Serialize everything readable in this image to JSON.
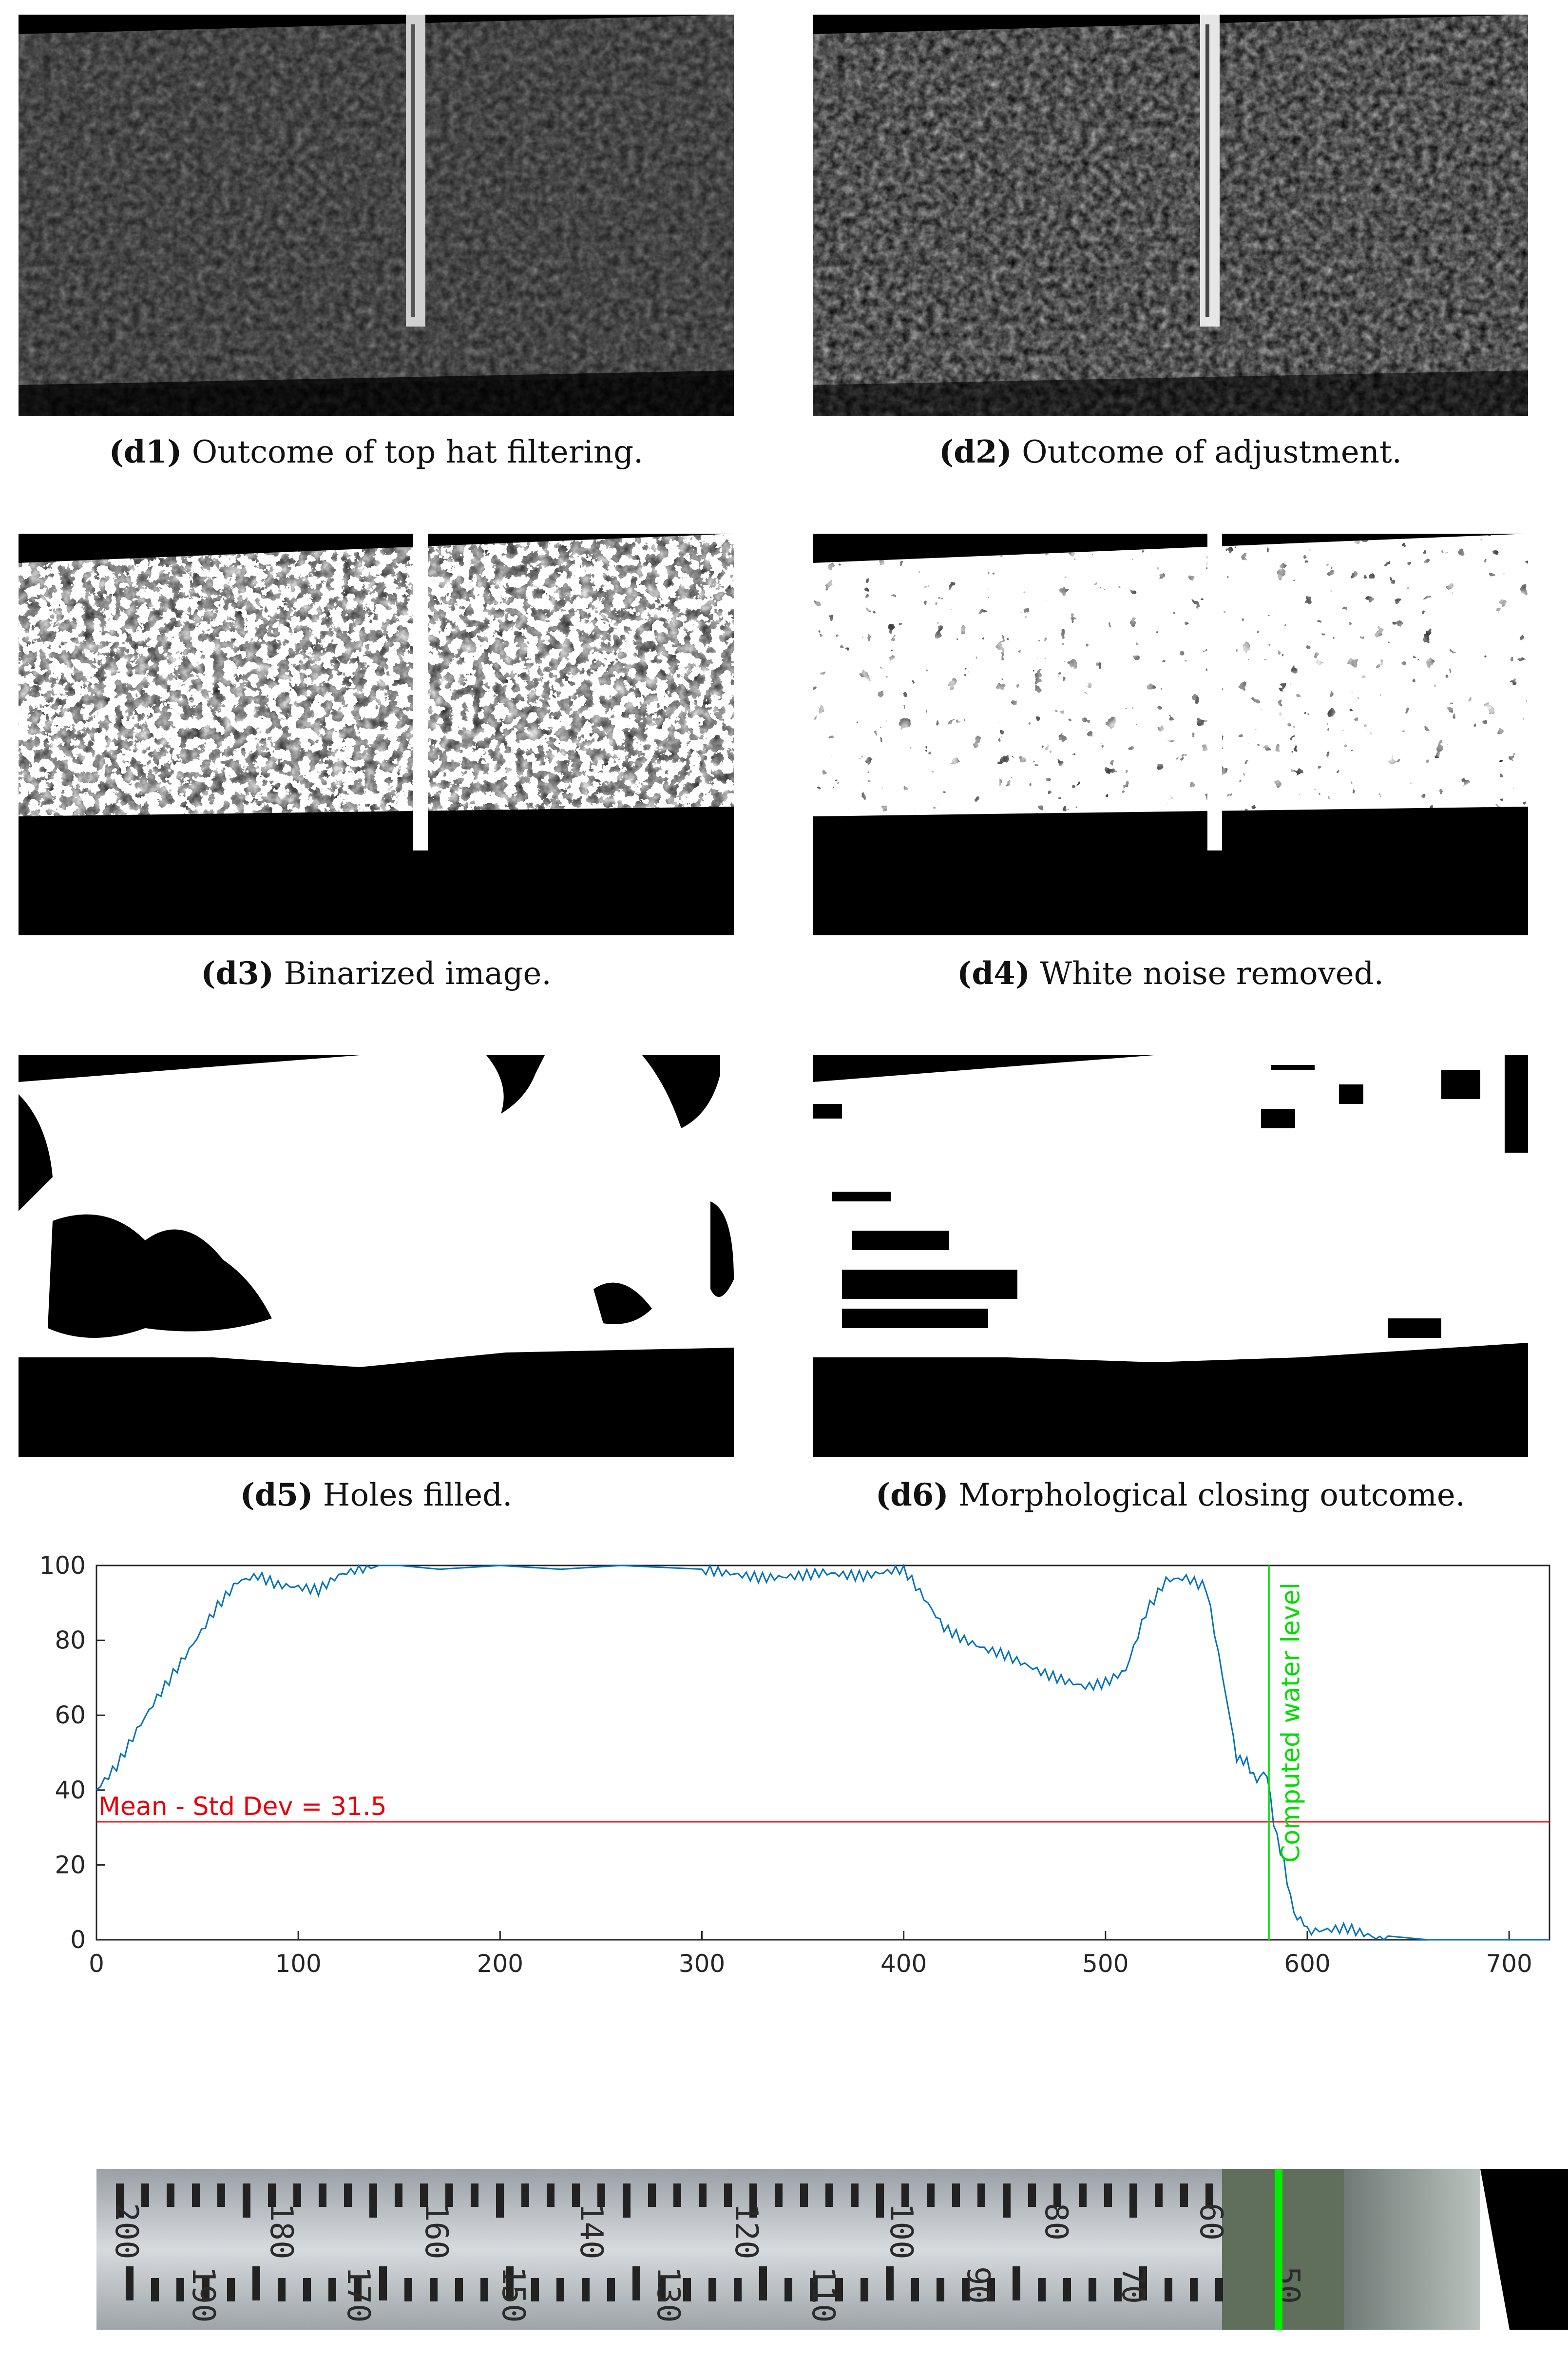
{
  "panels": [
    {
      "id": "d1",
      "label": "(d1)",
      "caption": "Outcome of top hat filtering.",
      "style": "tophat"
    },
    {
      "id": "d2",
      "label": "(d2)",
      "caption": "Outcome of adjustment.",
      "style": "adjusted"
    },
    {
      "id": "d3",
      "label": "(d3)",
      "caption": "Binarized image.",
      "style": "binary"
    },
    {
      "id": "d4",
      "label": "(d4)",
      "caption": "White noise removed.",
      "style": "denoised"
    },
    {
      "id": "d5",
      "label": "(d5)",
      "caption": "Holes filled.",
      "style": "filled"
    },
    {
      "id": "d6",
      "label": "(d6)",
      "caption": "Morphological closing outcome.",
      "style": "closed"
    }
  ],
  "chart_data": {
    "type": "line",
    "title": "",
    "xlabel": "",
    "ylabel": "",
    "xlim": [
      0,
      720
    ],
    "ylim": [
      0,
      100
    ],
    "xticks": [
      0,
      100,
      200,
      300,
      400,
      500,
      600,
      700
    ],
    "yticks": [
      0,
      20,
      40,
      60,
      80,
      100
    ],
    "series": [
      {
        "color": "#0072BD",
        "x": [
          0,
          10,
          20,
          30,
          40,
          50,
          60,
          70,
          80,
          90,
          100,
          110,
          120,
          130,
          140,
          150,
          170,
          200,
          230,
          260,
          300,
          330,
          360,
          380,
          400,
          410,
          420,
          430,
          440,
          450,
          470,
          490,
          500,
          510,
          520,
          530,
          540,
          550,
          560,
          565,
          570,
          575,
          580,
          585,
          590,
          595,
          600,
          610,
          620,
          640,
          660,
          700,
          720
        ],
        "y": [
          40,
          47,
          57,
          66,
          74,
          82,
          90,
          96,
          97,
          94,
          93,
          92,
          96,
          98,
          100,
          100,
          99,
          100,
          99,
          100,
          99,
          98,
          99,
          97,
          98,
          90,
          82,
          79,
          77,
          76,
          72,
          69,
          70,
          73,
          88,
          96,
          96,
          93,
          63,
          50,
          46,
          44,
          43,
          28,
          15,
          6,
          2,
          3,
          4,
          1,
          0,
          0,
          0
        ]
      },
      {
        "name": "Mean - Std Dev = 31.5",
        "color": "#E8000B",
        "type": "hline",
        "y": 31.5
      },
      {
        "name": "Computed water level",
        "color": "#00DD00",
        "type": "vline",
        "x": 581
      }
    ],
    "annotations": [
      {
        "text": "Mean - Std Dev = 31.5",
        "color": "#E8000B"
      },
      {
        "text": "Computed water level",
        "color": "#00DD00"
      }
    ],
    "grid": false,
    "legend": "none"
  },
  "ruler": {
    "top_labels": [
      "200",
      "180",
      "160",
      "140",
      "120",
      "100",
      "80",
      "60"
    ],
    "bottom_labels": [
      "190",
      "170",
      "150",
      "130",
      "110",
      "90",
      "70",
      "50"
    ],
    "marker_color": "#00EE00"
  }
}
